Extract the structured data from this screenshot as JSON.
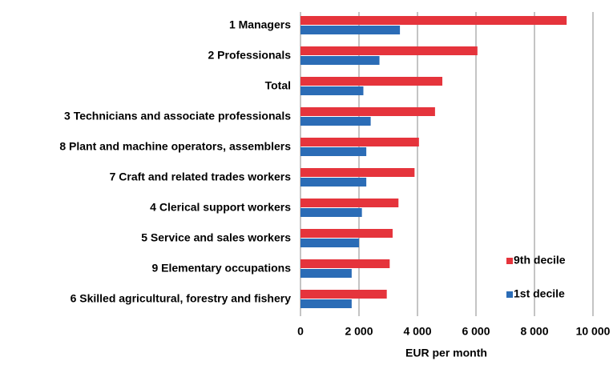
{
  "chart_data": {
    "type": "hbar",
    "categories": [
      "1 Managers",
      "2 Professionals",
      "Total",
      "3 Technicians and associate professionals",
      "8 Plant and machine operators, assemblers",
      "7 Craft and related trades workers",
      "4 Clerical support workers",
      "5 Service and sales workers",
      "9 Elementary occupations",
      "6 Skilled agricultural, forestry and fishery"
    ],
    "series": [
      {
        "name": "9th decile",
        "color": "#e5343c",
        "values": [
          9100,
          6050,
          4850,
          4600,
          4050,
          3900,
          3350,
          3150,
          3050,
          2950
        ]
      },
      {
        "name": "1st decile",
        "color": "#2b6cb6",
        "values": [
          3400,
          2700,
          2150,
          2400,
          2250,
          2250,
          2100,
          2000,
          1750,
          1750
        ]
      }
    ],
    "x_label": "EUR per month",
    "xlim": [
      0,
      10000
    ],
    "xticks": [
      0,
      {
        "value": 2000,
        "label": "2 000"
      },
      {
        "value": 4000,
        "label": "4 000"
      },
      {
        "value": 6000,
        "label": "6 000"
      },
      {
        "value": 8000,
        "label": "8 000"
      },
      {
        "value": 10000,
        "label": "10 000"
      }
    ],
    "grid": true,
    "legend": "lower-right"
  }
}
